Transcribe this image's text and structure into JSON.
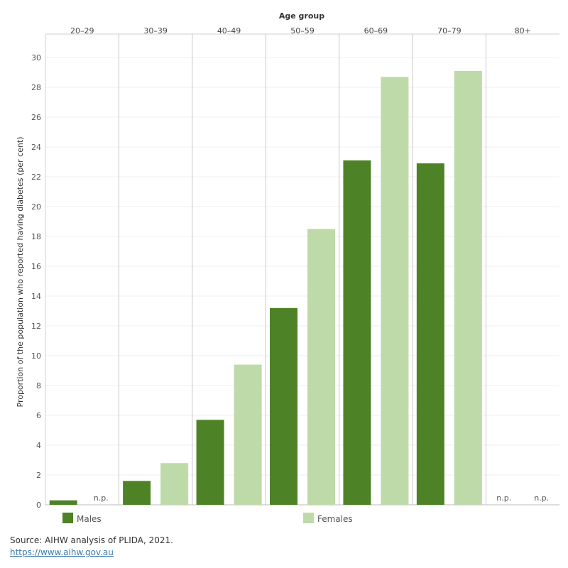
{
  "chart_data": {
    "type": "bar",
    "xlabel": "Age group",
    "ylabel": "Proportion of the population who reported having diabetes (per cent)",
    "ylim": [
      0,
      31
    ],
    "yticks": [
      0,
      2,
      4,
      6,
      8,
      10,
      12,
      14,
      16,
      18,
      20,
      22,
      24,
      26,
      28,
      30
    ],
    "categories": [
      "20–29",
      "30–39",
      "40–49",
      "50–59",
      "60–69",
      "70–79",
      "80+"
    ],
    "series": [
      {
        "name": "Males",
        "color": "#4e8226",
        "values": [
          0.3,
          1.6,
          5.7,
          13.2,
          23.1,
          22.9,
          null
        ]
      },
      {
        "name": "Females",
        "color": "#bfdaa9",
        "values": [
          null,
          2.8,
          9.4,
          18.5,
          28.7,
          29.1,
          null
        ]
      }
    ],
    "missing_label": "n.p.",
    "grid": true,
    "legend_position": "bottom"
  },
  "footer": {
    "source": "Source: AIHW analysis of PLIDA, 2021.",
    "link": "https://www.aihw.gov.au"
  }
}
